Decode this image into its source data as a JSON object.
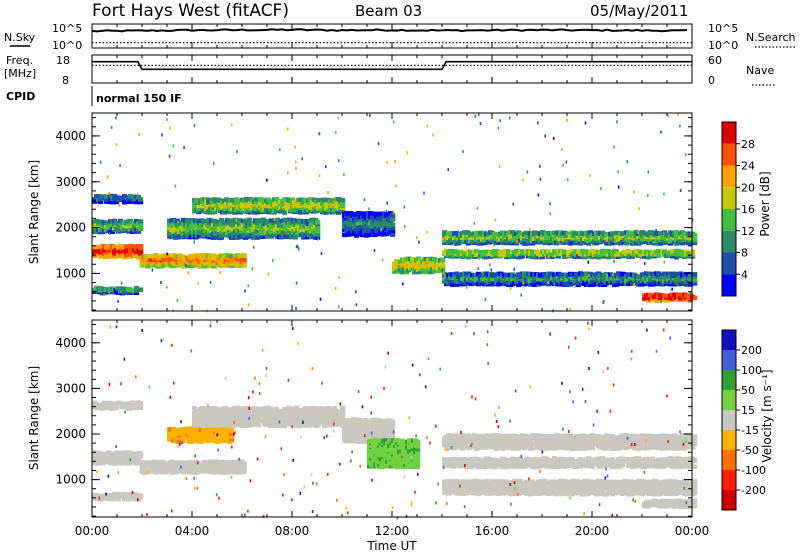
{
  "header": {
    "station": "Fort Hays West (fitACF)",
    "beam": "Beam 03",
    "date": "05/May/2011"
  },
  "nsky_panel": {
    "left_label": "N.Sky",
    "right_label": "N.Search",
    "left_ticks": [
      "10^5",
      "10^0"
    ],
    "right_ticks": [
      "10^5",
      "10^0"
    ]
  },
  "freq_panel": {
    "left_label_1": "Freq.",
    "left_label_2": "[MHz]",
    "right_label": "Nave",
    "left_ticks": [
      "18",
      "8"
    ],
    "right_ticks": [
      "60",
      "0"
    ]
  },
  "cpid": {
    "label": "CPID",
    "value": "normal 150 IF"
  },
  "xaxis": {
    "label": "Time UT",
    "ticks": [
      "00:00",
      "04:00",
      "08:00",
      "12:00",
      "16:00",
      "20:00",
      "00:00"
    ]
  },
  "colors": {
    "power_scale": [
      "#0000ff",
      "#1e4fae",
      "#2a8a6a",
      "#40bf40",
      "#c8c800",
      "#ffa000",
      "#ff5000",
      "#e00000"
    ],
    "velocity_scale": [
      "#1010c0",
      "#4060e0",
      "#30a030",
      "#70d040",
      "#c8c8c0",
      "#ffb000",
      "#ff7000",
      "#ff2000",
      "#d00000"
    ]
  },
  "chart_data": [
    {
      "type": "line",
      "title": "N.Sky / N.Search",
      "xlabel": "Time UT",
      "x": [
        "00:00",
        "02:00",
        "04:00",
        "06:00",
        "08:00",
        "10:00",
        "12:00",
        "14:00",
        "16:00",
        "18:00",
        "20:00",
        "22:00",
        "24:00"
      ],
      "series": [
        {
          "name": "N.Sky",
          "values": [
            0.7,
            0.72,
            0.74,
            0.75,
            0.76,
            0.74,
            0.75,
            0.73,
            0.74,
            0.75,
            0.74,
            0.73,
            0.72
          ]
        },
        {
          "name": "N.Search",
          "values": [
            0.22,
            0.22,
            0.22,
            0.22,
            0.22,
            0.22,
            0.22,
            0.22,
            0.22,
            0.22,
            0.22,
            0.22,
            0.22
          ]
        }
      ]
    },
    {
      "type": "line",
      "title": "Freq. [MHz] / Nave",
      "xlabel": "Time UT",
      "ylim": [
        8,
        18
      ],
      "x": [
        "00:00",
        "01:50",
        "02:00",
        "14:00",
        "14:10",
        "24:00"
      ],
      "series": [
        {
          "name": "Freq.",
          "values": [
            15.6,
            15.6,
            12.9,
            12.9,
            15.6,
            15.6
          ]
        },
        {
          "name": "Nave",
          "values": [
            38,
            38,
            38,
            38,
            38,
            38
          ]
        }
      ]
    },
    {
      "type": "heatmap",
      "ylabel": "Slant Range [km]",
      "xlabel": "Time UT",
      "ylim": [
        180,
        4500
      ],
      "yticks": [
        "1000",
        "2000",
        "3000",
        "4000"
      ],
      "xlim": [
        "00:00",
        "24:00"
      ],
      "colorbar": {
        "label": "Power [dB]",
        "ticks": [
          "28",
          "24",
          "20",
          "16",
          "12",
          "8",
          "4"
        ],
        "range": [
          0,
          30
        ]
      },
      "bands": [
        {
          "start": 0.0,
          "end": 1.9,
          "range_km": 1500,
          "width_km": 250,
          "value": 25
        },
        {
          "start": 0.0,
          "end": 1.9,
          "range_km": 2050,
          "width_km": 250,
          "value": 12
        },
        {
          "start": 0.0,
          "end": 1.9,
          "range_km": 2650,
          "width_km": 150,
          "value": 6
        },
        {
          "start": 0.0,
          "end": 1.9,
          "range_km": 650,
          "width_km": 120,
          "value": 10
        },
        {
          "start": 1.9,
          "end": 6.0,
          "range_km": 1300,
          "width_km": 250,
          "value": 20
        },
        {
          "start": 3.0,
          "end": 9.0,
          "range_km": 2000,
          "width_km": 400,
          "value": 12
        },
        {
          "start": 4.0,
          "end": 10.0,
          "range_km": 2500,
          "width_km": 300,
          "value": 14
        },
        {
          "start": 10.0,
          "end": 12.0,
          "range_km": 2100,
          "width_km": 500,
          "value": 6
        },
        {
          "start": 12.0,
          "end": 14.0,
          "range_km": 1200,
          "width_km": 300,
          "value": 16
        },
        {
          "start": 14.0,
          "end": 24.0,
          "range_km": 1800,
          "width_km": 250,
          "value": 12
        },
        {
          "start": 14.0,
          "end": 24.0,
          "range_km": 1450,
          "width_km": 150,
          "value": 14
        },
        {
          "start": 14.0,
          "end": 24.0,
          "range_km": 900,
          "width_km": 250,
          "value": 8
        },
        {
          "start": 22.0,
          "end": 24.0,
          "range_km": 500,
          "width_km": 150,
          "value": 26
        }
      ]
    },
    {
      "type": "heatmap",
      "ylabel": "Slant Range [km]",
      "xlabel": "Time UT",
      "ylim": [
        180,
        4500
      ],
      "yticks": [
        "1000",
        "2000",
        "3000",
        "4000"
      ],
      "xlim": [
        "00:00",
        "24:00"
      ],
      "colorbar": {
        "label": "Velocity [m s⁻¹]",
        "ticks": [
          "200",
          "100",
          "50",
          "15",
          "-15",
          "-50",
          "-100",
          "-200"
        ],
        "range": [
          -250,
          250
        ]
      },
      "bands": [
        {
          "start": 0.0,
          "end": 1.9,
          "range_km": 1500,
          "width_km": 250,
          "value": 0
        },
        {
          "start": 0.0,
          "end": 1.9,
          "range_km": 2650,
          "width_km": 150,
          "value": 0
        },
        {
          "start": 0.0,
          "end": 1.9,
          "range_km": 650,
          "width_km": 120,
          "value": 0
        },
        {
          "start": 1.9,
          "end": 6.0,
          "range_km": 1300,
          "width_km": 250,
          "value": 0
        },
        {
          "start": 3.0,
          "end": 5.5,
          "range_km": 2000,
          "width_km": 300,
          "value": -40
        },
        {
          "start": 4.0,
          "end": 10.0,
          "range_km": 2400,
          "width_km": 400,
          "value": 0
        },
        {
          "start": 10.0,
          "end": 12.0,
          "range_km": 2100,
          "width_km": 500,
          "value": 0
        },
        {
          "start": 11.0,
          "end": 13.0,
          "range_km": 1600,
          "width_km": 600,
          "value": 40
        },
        {
          "start": 14.0,
          "end": 24.0,
          "range_km": 1850,
          "width_km": 300,
          "value": 0
        },
        {
          "start": 14.0,
          "end": 24.0,
          "range_km": 1400,
          "width_km": 200,
          "value": 0
        },
        {
          "start": 14.0,
          "end": 24.0,
          "range_km": 850,
          "width_km": 300,
          "value": 0
        },
        {
          "start": 22.0,
          "end": 24.0,
          "range_km": 500,
          "width_km": 150,
          "value": 0
        }
      ]
    }
  ]
}
